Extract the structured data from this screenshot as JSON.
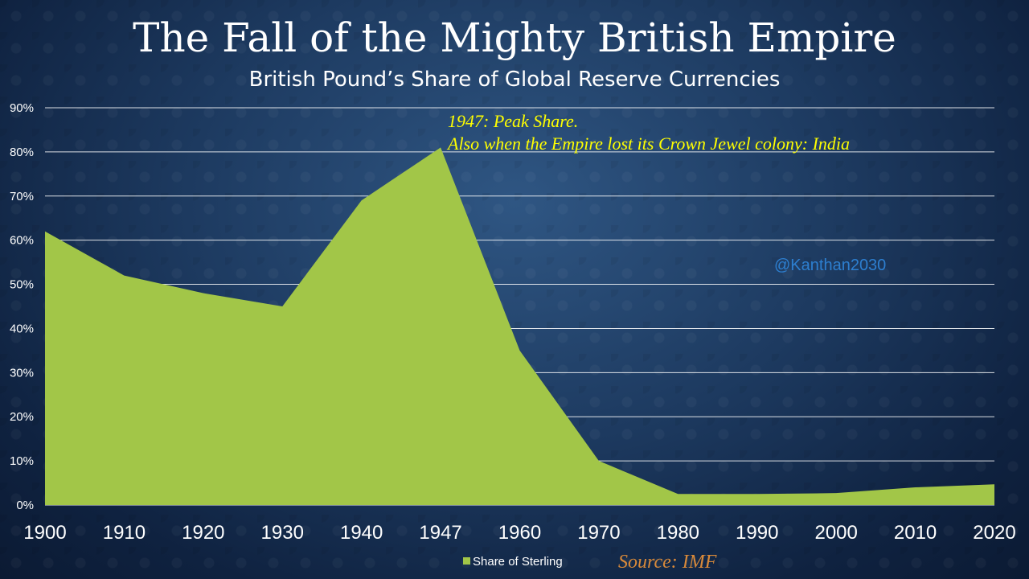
{
  "slide": {
    "title": "The Fall of the Mighty British Empire",
    "subtitle": "British Pound’s Share of Global Reserve Currencies"
  },
  "chart_data": {
    "type": "area",
    "x": [
      "1900",
      "1910",
      "1920",
      "1930",
      "1940",
      "1947",
      "1960",
      "1970",
      "1980",
      "1990",
      "2000",
      "2010",
      "2020"
    ],
    "series": [
      {
        "name": "Share of Sterling",
        "color": "#a2c648",
        "values": [
          62,
          52,
          48,
          45,
          69,
          81,
          35,
          10,
          2.5,
          2.5,
          2.7,
          4,
          4.7
        ]
      }
    ],
    "ylim": [
      0,
      90
    ],
    "yticks": [
      0,
      10,
      20,
      30,
      40,
      50,
      60,
      70,
      80,
      90
    ],
    "ytick_labels": [
      "0%",
      "10%",
      "20%",
      "30%",
      "40%",
      "50%",
      "60%",
      "70%",
      "80%",
      "90%"
    ],
    "grid": true,
    "legend": "bottom",
    "annotation": {
      "line1": "1947: Peak Share.",
      "line2": "Also when the Empire lost its Crown Jewel colony: India"
    },
    "watermark": "@Kanthan2030",
    "source": "Source: IMF"
  }
}
